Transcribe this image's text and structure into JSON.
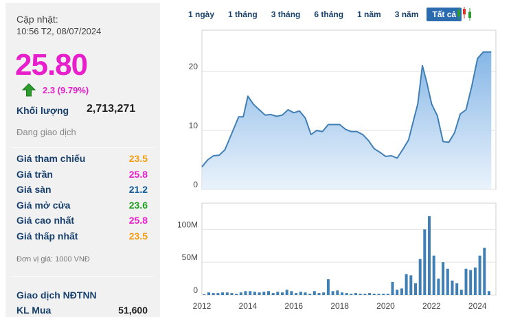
{
  "panel": {
    "updated_label": "Cập nhật:",
    "updated_time": "10:56 T2, 08/07/2024",
    "price": "25.80",
    "change": "2.3 (9.79%)",
    "volume_label": "Khối lượng",
    "volume_value": "2,713,271",
    "status": "Đang giao dịch",
    "rows": [
      {
        "label": "Giá tham chiếu",
        "value": "23.5",
        "color": "#f39c12"
      },
      {
        "label": "Giá trần",
        "value": "25.8",
        "color": "#e81ecc"
      },
      {
        "label": "Giá sàn",
        "value": "21.2",
        "color": "#0f5a9c"
      },
      {
        "label": "Giá mở cửa",
        "value": "23.6",
        "color": "#1f9e1f"
      },
      {
        "label": "Giá cao nhất",
        "value": "25.8",
        "color": "#e81ecc"
      },
      {
        "label": "Giá thấp nhất",
        "value": "23.5",
        "color": "#f39c12"
      }
    ],
    "unit_note": "Đơn vị giá: 1000 VNĐ",
    "foreign_title": "Giao dịch NĐTNN",
    "kl_mua_label": "KL Mua",
    "kl_mua_value": "51,600"
  },
  "tabs": [
    {
      "label": "1 ngày",
      "active": false
    },
    {
      "label": "1 tháng",
      "active": false
    },
    {
      "label": "3 tháng",
      "active": false
    },
    {
      "label": "6 tháng",
      "active": false
    },
    {
      "label": "1 năm",
      "active": false
    },
    {
      "label": "3 năm",
      "active": false
    },
    {
      "label": "Tất cả",
      "active": true
    }
  ],
  "icons": {
    "trend": "up-arrow-icon",
    "chart_type": "candlestick-icon"
  },
  "chart_data": [
    {
      "type": "area",
      "x_ticks": [
        "2012",
        "2014",
        "2016",
        "2018",
        "2020",
        "2022",
        "2024"
      ],
      "x_range": [
        2012,
        2024.8
      ],
      "y_ticks": [
        0,
        10,
        20
      ],
      "ylim": [
        0,
        27
      ],
      "grid": true,
      "line_color": "#3f7fb5",
      "x": [
        2012.0,
        2012.25,
        2012.5,
        2012.75,
        2013.0,
        2013.3,
        2013.6,
        2013.8,
        2014.0,
        2014.25,
        2014.5,
        2014.75,
        2015.0,
        2015.25,
        2015.5,
        2015.75,
        2016.0,
        2016.25,
        2016.5,
        2016.75,
        2017.0,
        2017.25,
        2017.5,
        2017.75,
        2018.0,
        2018.25,
        2018.5,
        2018.75,
        2019.0,
        2019.25,
        2019.5,
        2019.75,
        2020.0,
        2020.25,
        2020.5,
        2020.75,
        2021.0,
        2021.2,
        2021.4,
        2021.6,
        2021.8,
        2022.0,
        2022.25,
        2022.5,
        2022.75,
        2023.0,
        2023.25,
        2023.5,
        2023.75,
        2024.0,
        2024.25,
        2024.5,
        2024.6
      ],
      "values": [
        3.8,
        5.0,
        5.7,
        5.8,
        6.7,
        9.5,
        12.3,
        12.3,
        15.8,
        14.4,
        13.5,
        12.6,
        12.7,
        12.4,
        12.6,
        13.5,
        13.0,
        13.3,
        12.1,
        9.3,
        10.0,
        9.8,
        11.0,
        11.0,
        11.0,
        10.2,
        9.8,
        9.8,
        9.3,
        8.3,
        6.9,
        6.3,
        5.6,
        5.7,
        5.3,
        6.8,
        8.4,
        11.5,
        14.5,
        21.0,
        18.0,
        14.5,
        12.5,
        8.1,
        8.0,
        9.6,
        12.8,
        13.5,
        17.5,
        22.2,
        23.3,
        23.3,
        23.3
      ]
    },
    {
      "type": "bar",
      "x_ticks": [
        "2012",
        "2014",
        "2016",
        "2018",
        "2020",
        "2022",
        "2024"
      ],
      "y_ticks": [
        "0",
        "50M",
        "100M"
      ],
      "ylim": [
        0,
        140
      ],
      "unit": "M",
      "grid": true,
      "bar_color": "#3f7fb5",
      "x": [
        2012.1,
        2012.3,
        2012.5,
        2012.7,
        2012.9,
        2013.1,
        2013.3,
        2013.5,
        2013.7,
        2013.9,
        2014.1,
        2014.3,
        2014.5,
        2014.7,
        2014.9,
        2015.1,
        2015.3,
        2015.5,
        2015.7,
        2015.9,
        2016.1,
        2016.3,
        2016.5,
        2016.7,
        2016.9,
        2017.1,
        2017.3,
        2017.5,
        2017.7,
        2017.9,
        2018.1,
        2018.3,
        2018.5,
        2018.7,
        2018.9,
        2019.1,
        2019.3,
        2019.5,
        2019.7,
        2019.9,
        2020.1,
        2020.3,
        2020.5,
        2020.7,
        2020.9,
        2021.1,
        2021.3,
        2021.5,
        2021.7,
        2021.9,
        2022.1,
        2022.3,
        2022.5,
        2022.7,
        2022.9,
        2023.1,
        2023.3,
        2023.5,
        2023.7,
        2023.9,
        2024.1,
        2024.3,
        2024.5
      ],
      "values": [
        1,
        4,
        3,
        3,
        4,
        4,
        3,
        2,
        4,
        6,
        6,
        5,
        4,
        5,
        6,
        3,
        5,
        4,
        8,
        6,
        3,
        5,
        4,
        2,
        6,
        3,
        4,
        24,
        6,
        7,
        4,
        3,
        2,
        3,
        2,
        2,
        3,
        2,
        2,
        2,
        2,
        20,
        8,
        10,
        32,
        30,
        18,
        55,
        100,
        120,
        60,
        25,
        50,
        40,
        22,
        18,
        8,
        40,
        38,
        42,
        60,
        72,
        6
      ]
    }
  ]
}
